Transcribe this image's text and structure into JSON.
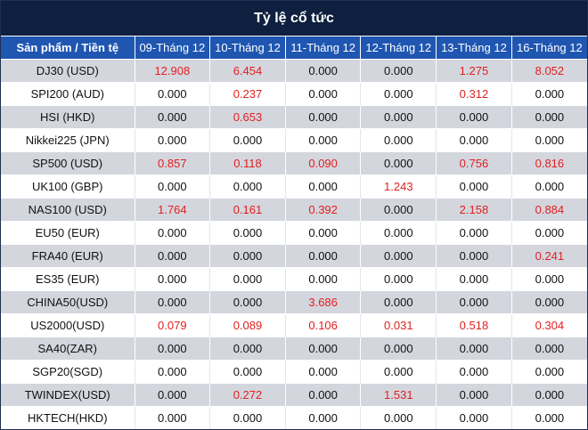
{
  "title": "Tỷ lệ cổ tức",
  "header": {
    "product_label": "Sản phẩm / Tiền tệ",
    "dates": [
      "09-Tháng 12",
      "10-Tháng 12",
      "11-Tháng 12",
      "12-Tháng 12",
      "13-Tháng 12",
      "16-Tháng 12"
    ]
  },
  "colors": {
    "title_bg": "#0f1f3f",
    "header_bg": "#1f56b1",
    "shade_row": "#d4d6de",
    "positive_value": "#e02020"
  },
  "rows": [
    {
      "name": "DJ30 (USD)",
      "values": [
        "12.908",
        "6.454",
        "0.000",
        "0.000",
        "1.275",
        "8.052"
      ]
    },
    {
      "name": "SPI200 (AUD)",
      "values": [
        "0.000",
        "0.237",
        "0.000",
        "0.000",
        "0.312",
        "0.000"
      ]
    },
    {
      "name": "HSI (HKD)",
      "values": [
        "0.000",
        "0.653",
        "0.000",
        "0.000",
        "0.000",
        "0.000"
      ]
    },
    {
      "name": "Nikkei225 (JPN)",
      "values": [
        "0.000",
        "0.000",
        "0.000",
        "0.000",
        "0.000",
        "0.000"
      ]
    },
    {
      "name": "SP500 (USD)",
      "values": [
        "0.857",
        "0.118",
        "0.090",
        "0.000",
        "0.756",
        "0.816"
      ]
    },
    {
      "name": "UK100 (GBP)",
      "values": [
        "0.000",
        "0.000",
        "0.000",
        "1.243",
        "0.000",
        "0.000"
      ]
    },
    {
      "name": "NAS100 (USD)",
      "values": [
        "1.764",
        "0.161",
        "0.392",
        "0.000",
        "2.158",
        "0.884"
      ]
    },
    {
      "name": "EU50 (EUR)",
      "values": [
        "0.000",
        "0.000",
        "0.000",
        "0.000",
        "0.000",
        "0.000"
      ]
    },
    {
      "name": "FRA40 (EUR)",
      "values": [
        "0.000",
        "0.000",
        "0.000",
        "0.000",
        "0.000",
        "0.241"
      ]
    },
    {
      "name": "ES35 (EUR)",
      "values": [
        "0.000",
        "0.000",
        "0.000",
        "0.000",
        "0.000",
        "0.000"
      ]
    },
    {
      "name": "CHINA50(USD)",
      "values": [
        "0.000",
        "0.000",
        "3.686",
        "0.000",
        "0.000",
        "0.000"
      ]
    },
    {
      "name": "US2000(USD)",
      "values": [
        "0.079",
        "0.089",
        "0.106",
        "0.031",
        "0.518",
        "0.304"
      ]
    },
    {
      "name": "SA40(ZAR)",
      "values": [
        "0.000",
        "0.000",
        "0.000",
        "0.000",
        "0.000",
        "0.000"
      ]
    },
    {
      "name": "SGP20(SGD)",
      "values": [
        "0.000",
        "0.000",
        "0.000",
        "0.000",
        "0.000",
        "0.000"
      ]
    },
    {
      "name": "TWINDEX(USD)",
      "values": [
        "0.000",
        "0.272",
        "0.000",
        "1.531",
        "0.000",
        "0.000"
      ]
    },
    {
      "name": "HKTECH(HKD)",
      "values": [
        "0.000",
        "0.000",
        "0.000",
        "0.000",
        "0.000",
        "0.000"
      ]
    }
  ]
}
